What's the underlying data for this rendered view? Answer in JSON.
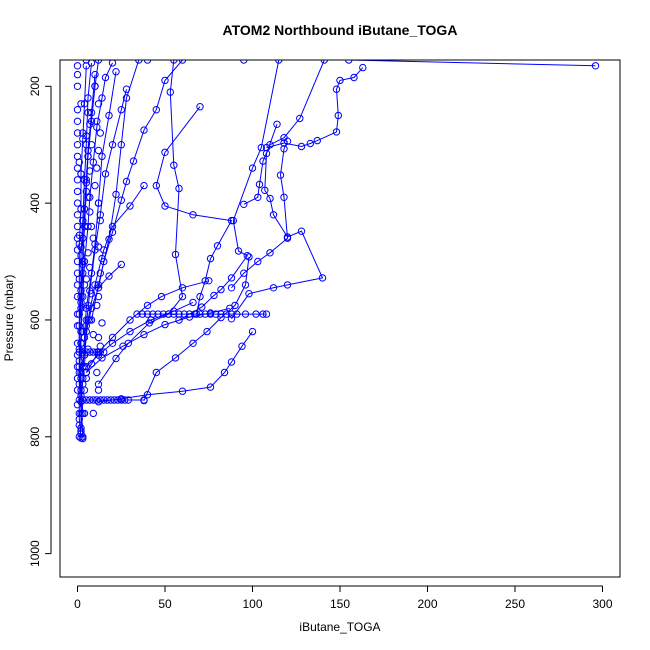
{
  "chart_data": {
    "type": "line",
    "title": "ATOM2 Northbound iButane_TOGA",
    "xlabel": "iButane_TOGA",
    "ylabel": "Pressure (mbar)",
    "xlim": [
      -10,
      310
    ],
    "ylim": [
      1040,
      155
    ],
    "y_reversed": true,
    "xticks": [
      0,
      50,
      100,
      150,
      200,
      250,
      300
    ],
    "yticks": [
      200,
      400,
      600,
      800,
      1000
    ],
    "grid": false,
    "legend": "none",
    "colors": {
      "series": "#0000ff",
      "axes": "#000000",
      "background": "#ffffff"
    },
    "series": [
      {
        "points": [
          [
            296,
            165
          ],
          [
            155,
            155
          ],
          [
            95,
            155
          ],
          [
            40,
            155
          ],
          [
            5,
            155
          ]
        ]
      },
      {
        "points": [
          [
            163,
            168
          ],
          [
            158,
            185
          ],
          [
            150,
            190
          ],
          [
            148,
            205
          ],
          [
            149,
            250
          ],
          [
            148,
            278
          ],
          [
            137,
            293
          ],
          [
            133,
            298
          ],
          [
            128,
            303
          ],
          [
            118,
            297
          ],
          [
            108,
            305
          ]
        ]
      },
      {
        "points": [
          [
            141,
            155
          ],
          [
            127,
            255
          ],
          [
            118,
            288
          ],
          [
            110,
            300
          ],
          [
            106,
            328
          ],
          [
            104,
            368
          ],
          [
            103,
            390
          ],
          [
            95,
            402
          ]
        ]
      },
      {
        "points": [
          [
            114,
            265
          ],
          [
            108,
            315
          ],
          [
            107,
            378
          ],
          [
            110,
            392
          ],
          [
            112,
            420
          ],
          [
            120,
            458
          ],
          [
            128,
            448
          ],
          [
            140,
            528
          ],
          [
            120,
            540
          ],
          [
            112,
            545
          ],
          [
            98,
            555
          ],
          [
            88,
            598
          ]
        ]
      },
      {
        "points": [
          [
            115,
            155
          ],
          [
            105,
            305
          ],
          [
            100,
            340
          ],
          [
            89,
            430
          ],
          [
            92,
            482
          ],
          [
            97,
            490
          ],
          [
            88,
            528
          ],
          [
            82,
            548
          ],
          [
            78,
            558
          ],
          [
            71,
            578
          ],
          [
            58,
            600
          ]
        ]
      },
      {
        "points": [
          [
            55,
            155
          ],
          [
            53,
            210
          ],
          [
            55,
            335
          ],
          [
            58,
            375
          ],
          [
            56,
            488
          ],
          [
            60,
            560
          ],
          [
            52,
            590
          ],
          [
            41,
            605
          ],
          [
            29,
            640
          ],
          [
            22,
            666
          ],
          [
            12,
            710
          ]
        ]
      },
      {
        "points": [
          [
            70,
            235
          ],
          [
            50,
            313
          ],
          [
            45,
            370
          ],
          [
            50,
            405
          ],
          [
            66,
            420
          ],
          [
            88,
            430
          ],
          [
            80,
            473
          ],
          [
            76,
            495
          ],
          [
            73,
            533
          ],
          [
            70,
            560
          ],
          [
            68,
            590
          ]
        ]
      },
      {
        "points": [
          [
            120,
            294
          ],
          [
            118,
            307
          ],
          [
            116,
            352
          ],
          [
            118,
            390
          ],
          [
            120,
            460
          ],
          [
            110,
            485
          ],
          [
            103,
            500
          ],
          [
            95,
            520
          ],
          [
            88,
            545
          ]
        ]
      },
      {
        "points": [
          [
            60,
            155
          ],
          [
            50,
            190
          ],
          [
            45,
            240
          ],
          [
            38,
            275
          ],
          [
            32,
            328
          ],
          [
            28,
            363
          ],
          [
            25,
            395
          ],
          [
            20,
            450
          ],
          [
            15,
            500
          ],
          [
            12,
            545
          ]
        ]
      },
      {
        "points": [
          [
            98,
            492
          ],
          [
            96,
            540
          ],
          [
            90,
            575
          ],
          [
            82,
            596
          ],
          [
            74,
            620
          ],
          [
            66,
            640
          ],
          [
            56,
            665
          ],
          [
            45,
            690
          ],
          [
            38,
            738
          ]
        ]
      },
      {
        "points": [
          [
            100,
            620
          ],
          [
            94,
            645
          ],
          [
            88,
            672
          ],
          [
            84,
            690
          ],
          [
            76,
            715
          ],
          [
            60,
            722
          ],
          [
            40,
            728
          ],
          [
            25,
            735
          ],
          [
            12,
            740
          ]
        ]
      },
      {
        "points": [
          [
            35,
            155
          ],
          [
            28,
            220
          ],
          [
            25,
            300
          ],
          [
            22,
            385
          ],
          [
            18,
            462
          ],
          [
            12,
            540
          ],
          [
            8,
            600
          ]
        ]
      },
      {
        "points": [
          [
            38,
            370
          ],
          [
            30,
            405
          ],
          [
            20,
            440
          ],
          [
            15,
            480
          ],
          [
            10,
            540
          ],
          [
            6,
            600
          ],
          [
            4,
            660
          ]
        ]
      },
      {
        "points": [
          [
            25,
            505
          ],
          [
            18,
            525
          ],
          [
            12,
            545
          ],
          [
            8,
            580
          ],
          [
            5,
            620
          ],
          [
            3,
            680
          ]
        ]
      },
      {
        "points": [
          [
            75,
            533
          ],
          [
            60,
            545
          ],
          [
            48,
            560
          ],
          [
            40,
            575
          ],
          [
            30,
            600
          ],
          [
            20,
            630
          ],
          [
            12,
            655
          ],
          [
            5,
            690
          ]
        ]
      },
      {
        "points": [
          [
            87,
            580
          ],
          [
            76,
            588
          ],
          [
            64,
            595
          ],
          [
            50,
            608
          ],
          [
            38,
            625
          ],
          [
            26,
            645
          ],
          [
            14,
            665
          ],
          [
            5,
            690
          ]
        ]
      },
      {
        "points": [
          [
            66,
            570
          ],
          [
            55,
            585
          ],
          [
            42,
            600
          ],
          [
            30,
            620
          ],
          [
            20,
            640
          ],
          [
            12,
            660
          ],
          [
            5,
            680
          ]
        ]
      },
      {
        "points": [
          [
            12,
            155
          ],
          [
            10,
            200
          ],
          [
            8,
            260
          ],
          [
            6,
            320
          ],
          [
            5,
            380
          ],
          [
            4,
            440
          ],
          [
            3,
            500
          ],
          [
            2,
            560
          ],
          [
            2,
            620
          ],
          [
            1,
            680
          ],
          [
            2,
            740
          ],
          [
            3,
            800
          ]
        ]
      },
      {
        "points": [
          [
            8,
            160
          ],
          [
            6,
            220
          ],
          [
            5,
            300
          ],
          [
            4,
            360
          ],
          [
            3,
            430
          ],
          [
            2,
            490
          ],
          [
            2,
            550
          ],
          [
            1,
            610
          ],
          [
            1,
            670
          ],
          [
            2,
            720
          ],
          [
            2,
            790
          ]
        ]
      },
      {
        "points": [
          [
            5,
            165
          ],
          [
            4,
            230
          ],
          [
            3,
            290
          ],
          [
            2,
            350
          ],
          [
            2,
            410
          ],
          [
            1,
            470
          ],
          [
            1,
            530
          ],
          [
            1,
            590
          ],
          [
            1,
            650
          ],
          [
            1,
            710
          ],
          [
            1,
            770
          ],
          [
            2,
            802
          ]
        ]
      },
      {
        "points": [
          [
            22,
            175
          ],
          [
            18,
            250
          ],
          [
            14,
            320
          ],
          [
            12,
            400
          ],
          [
            10,
            470
          ],
          [
            8,
            520
          ],
          [
            5,
            580
          ],
          [
            4,
            630
          ],
          [
            3,
            700
          ],
          [
            2,
            760
          ]
        ]
      },
      {
        "points": [
          [
            28,
            205
          ],
          [
            25,
            240
          ],
          [
            20,
            300
          ],
          [
            16,
            350
          ],
          [
            13,
            420
          ],
          [
            10,
            480
          ],
          [
            7,
            550
          ],
          [
            5,
            610
          ],
          [
            4,
            680
          ]
        ]
      },
      {
        "points": [
          [
            10,
            180
          ],
          [
            8,
            245
          ],
          [
            6,
            310
          ],
          [
            5,
            360
          ],
          [
            4,
            410
          ],
          [
            3,
            460
          ],
          [
            3,
            520
          ],
          [
            2,
            580
          ],
          [
            2,
            640
          ],
          [
            2,
            700
          ],
          [
            3,
            760
          ]
        ]
      },
      {
        "points": [
          [
            20,
            160
          ],
          [
            16,
            185
          ],
          [
            14,
            220
          ],
          [
            11,
            270
          ],
          [
            9,
            330
          ],
          [
            7,
            390
          ],
          [
            6,
            440
          ],
          [
            4,
            500
          ],
          [
            3,
            560
          ],
          [
            2,
            620
          ],
          [
            2,
            690
          ]
        ]
      }
    ],
    "horizontal_runs": [
      {
        "y": 590,
        "x": [
          34,
          37,
          40,
          43,
          46,
          49,
          52,
          55,
          58,
          61,
          64,
          67,
          70,
          73,
          76,
          79,
          82,
          85,
          88,
          91,
          96,
          102,
          106,
          108
        ]
      },
      {
        "y": 737,
        "x": [
          1,
          3,
          5,
          7,
          9,
          11,
          13,
          15,
          17,
          19,
          21,
          23,
          25,
          27,
          29,
          38
        ]
      },
      {
        "y": 655,
        "x": [
          1,
          3,
          5,
          7,
          9,
          11,
          13,
          15
        ]
      }
    ],
    "scatter": [
      [
        2,
        230
      ],
      [
        3,
        280
      ],
      [
        1,
        330
      ],
      [
        2,
        350
      ],
      [
        3,
        430
      ],
      [
        1,
        455
      ],
      [
        2,
        475
      ],
      [
        3,
        505
      ],
      [
        4,
        540
      ],
      [
        2,
        570
      ],
      [
        5,
        600
      ],
      [
        3,
        620
      ],
      [
        2,
        640
      ],
      [
        4,
        660
      ],
      [
        1,
        690
      ],
      [
        3,
        710
      ],
      [
        2,
        730
      ],
      [
        4,
        760
      ],
      [
        1,
        780
      ],
      [
        2,
        795
      ],
      [
        6,
        245
      ],
      [
        7,
        265
      ],
      [
        5,
        285
      ],
      [
        8,
        300
      ],
      [
        6,
        320
      ],
      [
        7,
        345
      ],
      [
        5,
        365
      ],
      [
        6,
        390
      ],
      [
        7,
        415
      ],
      [
        8,
        440
      ],
      [
        9,
        460
      ],
      [
        6,
        485
      ],
      [
        7,
        510
      ],
      [
        5,
        530
      ],
      [
        8,
        555
      ],
      [
        6,
        575
      ],
      [
        7,
        600
      ],
      [
        9,
        625
      ],
      [
        6,
        650
      ],
      [
        8,
        675
      ],
      [
        5,
        700
      ],
      [
        4,
        720
      ],
      [
        9,
        760
      ],
      [
        10,
        200
      ],
      [
        12,
        230
      ],
      [
        11,
        260
      ],
      [
        13,
        280
      ],
      [
        12,
        310
      ],
      [
        11,
        340
      ],
      [
        10,
        370
      ],
      [
        12,
        400
      ],
      [
        13,
        430
      ],
      [
        12,
        475
      ],
      [
        14,
        495
      ],
      [
        13,
        520
      ],
      [
        12,
        560
      ],
      [
        11,
        575
      ],
      [
        14,
        605
      ],
      [
        12,
        630
      ],
      [
        13,
        645
      ],
      [
        11,
        690
      ],
      [
        12,
        720
      ],
      [
        1,
        800
      ],
      [
        3,
        803
      ],
      [
        2,
        785
      ],
      [
        1,
        760
      ],
      [
        0,
        745
      ],
      [
        0,
        720
      ],
      [
        0,
        700
      ],
      [
        0,
        680
      ],
      [
        0,
        660
      ],
      [
        0,
        640
      ],
      [
        0,
        610
      ],
      [
        0,
        590
      ],
      [
        0,
        560
      ],
      [
        0,
        540
      ],
      [
        0,
        520
      ],
      [
        0,
        500
      ],
      [
        0,
        480
      ],
      [
        0,
        460
      ],
      [
        0,
        440
      ],
      [
        0,
        420
      ],
      [
        0,
        400
      ],
      [
        0,
        380
      ],
      [
        0,
        360
      ],
      [
        0,
        340
      ],
      [
        0,
        320
      ],
      [
        0,
        300
      ],
      [
        0,
        280
      ],
      [
        0,
        260
      ],
      [
        0,
        240
      ],
      [
        0,
        200
      ],
      [
        0,
        180
      ],
      [
        0,
        165
      ]
    ]
  }
}
